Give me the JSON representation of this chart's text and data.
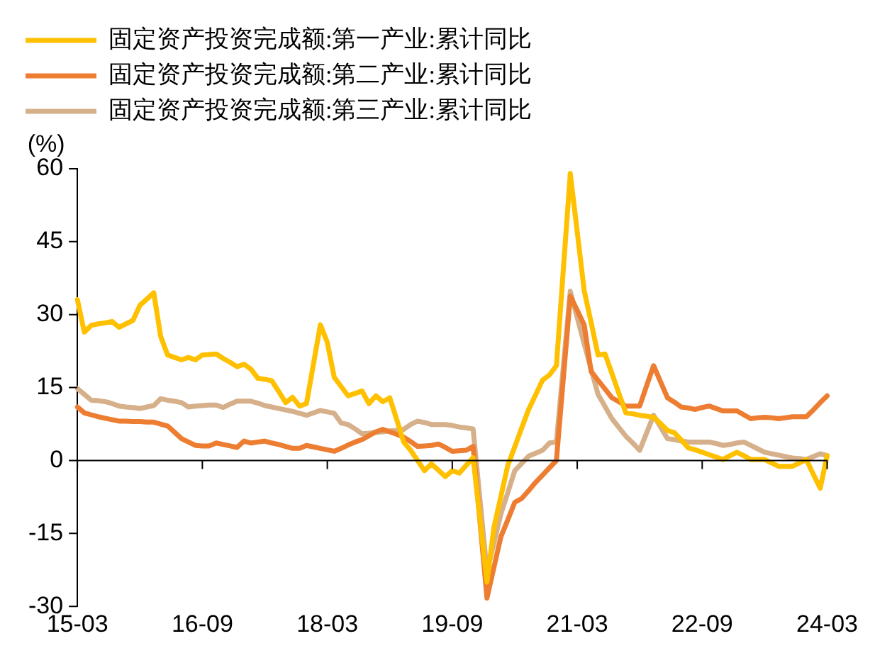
{
  "chart_data": {
    "type": "line",
    "ylabel": "(%)",
    "categories": [
      "15-03",
      null,
      null,
      null,
      null,
      null,
      null,
      null,
      null,
      null,
      null,
      null,
      null,
      null,
      null,
      null,
      null,
      null,
      "16-09",
      null,
      null,
      null,
      null,
      null,
      null,
      null,
      null,
      null,
      null,
      null,
      null,
      null,
      null,
      null,
      null,
      null,
      "18-03",
      null,
      null,
      null,
      null,
      null,
      null,
      null,
      null,
      null,
      null,
      null,
      null,
      null,
      null,
      null,
      null,
      null,
      "19-09",
      null,
      null,
      null,
      null,
      null,
      null,
      null,
      null,
      null,
      null,
      null,
      null,
      null,
      null,
      null,
      null,
      null,
      "21-03",
      null,
      null,
      null,
      null,
      null,
      null,
      null,
      null,
      null,
      null,
      null,
      null,
      null,
      null,
      null,
      null,
      null,
      "22-09",
      null,
      null,
      null,
      null,
      null,
      null,
      null,
      null,
      null,
      null,
      null,
      null,
      null,
      null,
      null,
      null,
      null,
      "24-03"
    ],
    "ylim": [
      -30,
      60
    ],
    "yticks": [
      -30,
      -15,
      0,
      15,
      30,
      45,
      60
    ],
    "ref_lines": [
      {
        "axis": "y",
        "value": 0,
        "color": "#000000"
      }
    ],
    "grid": false,
    "legend": "top left",
    "marker": "none",
    "line_style": "solid",
    "series": [
      {
        "name": "固定资产投资完成额:第一产业:累计同比",
        "color": "#ffc000",
        "values": [
          33.1,
          26.4,
          27.8,
          28.1,
          28.3,
          28.6,
          27.4,
          28.1,
          28.8,
          31.9,
          33.2,
          34.5,
          25.5,
          21.7,
          21.2,
          20.7,
          21.2,
          20.7,
          21.7,
          21.8,
          21.9,
          21.0,
          20.2,
          19.3,
          19.8,
          18.8,
          16.9,
          16.7,
          16.4,
          14.2,
          11.9,
          13,
          11.2,
          11.7,
          19.8,
          27.9,
          24.3,
          17.1,
          15.2,
          13.3,
          13.8,
          14.3,
          11.7,
          13.3,
          12.1,
          12.9,
          8.4,
          3.8,
          2.1,
          0,
          -2.1,
          -0.7,
          -2,
          -3.3,
          -2.1,
          -2.6,
          -1,
          0.6,
          -12.2,
          -25,
          -13.8,
          -7.4,
          -1,
          2.8,
          6.7,
          10.5,
          13.5,
          16.5,
          17.6,
          19.5,
          39.3,
          59,
          47,
          35,
          28.4,
          21.7,
          21.9,
          17.9,
          13.8,
          9.8,
          9.6,
          9.3,
          9.1,
          8.9,
          7.6,
          6.2,
          5.7,
          4.2,
          2.6,
          2.2,
          1.7,
          1.2,
          0.7,
          0.2,
          1,
          1.7,
          1,
          0.2,
          0.2,
          0.2,
          -0.5,
          -1.2,
          -1.2,
          -1.2,
          -0.5,
          0.2,
          -2.8,
          -5.7,
          1
        ]
      },
      {
        "name": "固定资产投资完成额:第二产业:累计同比",
        "color": "#ed7d31",
        "values": [
          11,
          9.8,
          9.4,
          9,
          8.7,
          8.4,
          8.1,
          8.1,
          8,
          8,
          7.9,
          7.9,
          7.5,
          7.1,
          5.8,
          4.5,
          3.8,
          3.1,
          3,
          3,
          3.6,
          3.3,
          3,
          2.7,
          4,
          3.6,
          3.8,
          4,
          3.6,
          3.3,
          2.9,
          2.5,
          2.5,
          3.1,
          2.8,
          2.5,
          2.2,
          1.9,
          2.5,
          3.2,
          3.8,
          4.3,
          5.1,
          5.9,
          6.4,
          5.9,
          5.4,
          4.8,
          3.9,
          2.9,
          3,
          3.1,
          3.4,
          2.7,
          1.9,
          2,
          2.1,
          2.9,
          -12.7,
          -28.3,
          -22,
          -15.7,
          -12.2,
          -8.6,
          -7.8,
          -6.2,
          -4.5,
          -3,
          -1.5,
          0,
          16.9,
          33.8,
          30.9,
          27.9,
          18.3,
          16.5,
          14.7,
          12.9,
          12.1,
          11.2,
          11.2,
          11.2,
          15.4,
          19.5,
          16.2,
          12.9,
          12,
          11,
          10.8,
          10.5,
          10.9,
          11.2,
          10.7,
          10.2,
          10.2,
          10.2,
          9.4,
          8.6,
          8.8,
          8.9,
          8.8,
          8.6,
          8.8,
          9,
          9,
          9,
          10.4,
          11.9,
          13.3
        ]
      },
      {
        "name": "固定资产投资完成额:第三产业:累计同比",
        "color": "#d6b08a",
        "values": [
          14.8,
          13.6,
          12.4,
          12.3,
          12.1,
          11.7,
          11.2,
          11,
          10.9,
          10.7,
          11,
          11.3,
          12.7,
          12.4,
          12.2,
          11.9,
          11,
          11.2,
          11.3,
          11.4,
          11.4,
          10.9,
          11.6,
          12.2,
          12.2,
          12.2,
          11.8,
          11.3,
          11,
          10.7,
          10.4,
          10.1,
          9.7,
          9.3,
          9.8,
          10.3,
          10,
          9.7,
          7.7,
          7.4,
          6.5,
          5.5,
          5.6,
          5.8,
          5.9,
          6.1,
          6.2,
          6.4,
          7.4,
          8.1,
          7.8,
          7.4,
          7.4,
          7.4,
          7.2,
          6.9,
          6.7,
          6.5,
          -8.2,
          -22.9,
          -17,
          -11,
          -6.6,
          -2.1,
          -0.6,
          0.9,
          1.5,
          2.1,
          3.6,
          3.8,
          19.3,
          34.8,
          29.4,
          24,
          18.8,
          13.6,
          11.1,
          8.6,
          6.8,
          5,
          3.6,
          2.1,
          5.7,
          9.3,
          6.9,
          4.5,
          4.3,
          4,
          3.8,
          3.8,
          3.8,
          3.8,
          3.5,
          3.1,
          3.3,
          3.6,
          3.8,
          3.1,
          2.4,
          1.7,
          1.4,
          1.1,
          0.8,
          0.5,
          0.4,
          0.2,
          0.8,
          1.4,
          1
        ]
      }
    ]
  }
}
